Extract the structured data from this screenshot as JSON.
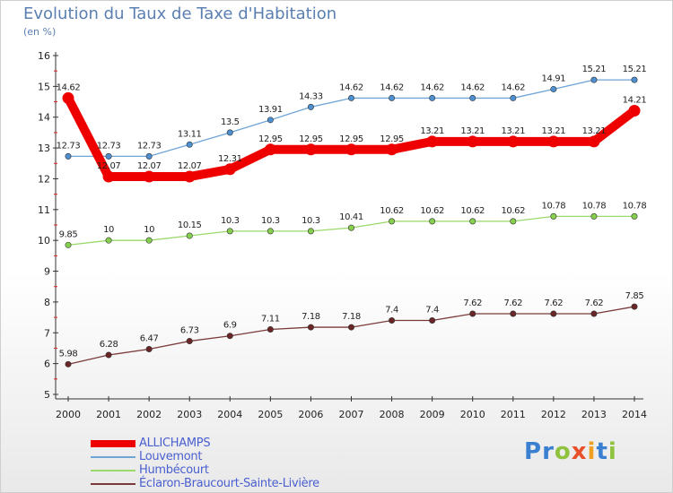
{
  "title": "Evolution du Taux de Taxe d'Habitation",
  "unit": "(en %)",
  "logo": {
    "letters": [
      {
        "ch": "P",
        "color": "#3a7fd0"
      },
      {
        "ch": "r",
        "color": "#3a7fd0"
      },
      {
        "ch": "o",
        "color": "#8fc23d"
      },
      {
        "ch": "x",
        "color": "#e8502a"
      },
      {
        "ch": "i",
        "color": "#f0a020"
      },
      {
        "ch": "t",
        "color": "#3a7fd0"
      },
      {
        "ch": "i",
        "color": "#8fc23d"
      }
    ]
  },
  "chart_data": {
    "type": "line",
    "x": [
      "2000",
      "2001",
      "2002",
      "2003",
      "2004",
      "2005",
      "2006",
      "2007",
      "2008",
      "2009",
      "2010",
      "2011",
      "2012",
      "2013",
      "2014"
    ],
    "ylim": [
      5,
      16
    ],
    "yticks": [
      "5",
      "6",
      "7",
      "8",
      "9",
      "10",
      "11",
      "12",
      "13",
      "14",
      "15",
      "16"
    ],
    "grid": false,
    "legend_position": "bottom-left",
    "series": [
      {
        "name": "ALLICHAMPS",
        "color": "#ee0000",
        "highlight": true,
        "values": [
          14.62,
          12.07,
          12.07,
          12.07,
          12.31,
          12.95,
          12.95,
          12.95,
          12.95,
          13.21,
          13.21,
          13.21,
          13.21,
          13.21,
          14.21
        ],
        "labels": [
          "14.62",
          "12.07",
          "12.07",
          "12.07",
          "12.31",
          "12.95",
          "12.95",
          "12.95",
          "12.95",
          "13.21",
          "13.21",
          "13.21",
          "13.21",
          "13.21",
          "14.21"
        ]
      },
      {
        "name": "Louvemont",
        "color": "#6fa4d6",
        "dot": "#4d8fd0",
        "values": [
          12.73,
          12.73,
          12.73,
          13.11,
          13.5,
          13.91,
          14.33,
          14.62,
          14.62,
          14.62,
          14.62,
          14.62,
          14.91,
          15.21,
          15.21
        ],
        "labels": [
          "12.73",
          "12.73",
          "12.73",
          "13.11",
          "13.5",
          "13.91",
          "14.33",
          "14.62",
          "14.62",
          "14.62",
          "14.62",
          "14.62",
          "14.91",
          "15.21",
          "15.21"
        ]
      },
      {
        "name": "Humbécourt",
        "color": "#9ad96a",
        "dot": "#86d04e",
        "values": [
          9.85,
          10,
          10,
          10.15,
          10.3,
          10.3,
          10.3,
          10.41,
          10.62,
          10.62,
          10.62,
          10.62,
          10.78,
          10.78,
          10.78
        ],
        "labels": [
          "9.85",
          "10",
          "10",
          "10.15",
          "10.3",
          "10.3",
          "10.3",
          "10.41",
          "10.62",
          "10.62",
          "10.62",
          "10.62",
          "10.78",
          "10.78",
          "10.78"
        ]
      },
      {
        "name": "Éclaron-Braucourt-Sainte-Livière",
        "color": "#7a3a3a",
        "dot": "#6a2626",
        "values": [
          5.98,
          6.28,
          6.47,
          6.73,
          6.9,
          7.11,
          7.18,
          7.18,
          7.4,
          7.4,
          7.62,
          7.62,
          7.62,
          7.62,
          7.85
        ],
        "labels": [
          "5.98",
          "6.28",
          "6.47",
          "6.73",
          "6.9",
          "7.11",
          "7.18",
          "7.18",
          "7.4",
          "7.4",
          "7.62",
          "7.62",
          "7.62",
          "7.62",
          "7.85"
        ]
      }
    ]
  }
}
